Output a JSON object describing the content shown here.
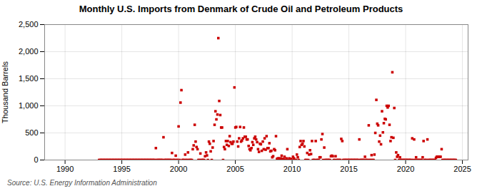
{
  "chart_data": {
    "type": "scatter",
    "title": "Monthly U.S. Imports from Denmark of Crude Oil and Petroleum Products",
    "ylabel": "Thousand Barrels",
    "annotations": [
      "Source: U.S. Energy Information Administration"
    ],
    "color": "#cc0000",
    "marker": "square",
    "grid": true,
    "xlim": [
      1988.2,
      2025.5
    ],
    "xticks": [
      1990,
      1995,
      2000,
      2005,
      2010,
      2015,
      2020,
      2025
    ],
    "ylim": [
      0,
      2500
    ],
    "yticks": [
      0,
      500,
      {
        "value": 1000,
        "label": "1,000"
      },
      {
        "value": 1500,
        "label": "1,500"
      },
      {
        "value": 2000,
        "label": "2,000"
      },
      {
        "value": 2500,
        "label": "2,500"
      }
    ],
    "x": [
      1993,
      1993.08,
      1993.17,
      1993.25,
      1993.33,
      1993.42,
      1993.5,
      1993.58,
      1993.67,
      1993.75,
      1993.83,
      1993.92,
      1994,
      1994.08,
      1994.17,
      1994.25,
      1994.33,
      1994.42,
      1994.5,
      1994.58,
      1994.67,
      1994.75,
      1994.83,
      1994.92,
      1995,
      1995.08,
      1995.17,
      1995.25,
      1995.33,
      1995.42,
      1995.5,
      1995.58,
      1995.67,
      1995.75,
      1995.83,
      1995.92,
      1996,
      1996.08,
      1996.17,
      1996.25,
      1996.33,
      1996.42,
      1996.5,
      1996.58,
      1996.67,
      1996.75,
      1996.83,
      1996.92,
      1997,
      1997.08,
      1997.17,
      1997.25,
      1997.33,
      1997.42,
      1997.5,
      1997.58,
      1997.67,
      1997.75,
      1997.83,
      1997.92,
      1998,
      1998.08,
      1998.17,
      1998.25,
      1998.33,
      1998.42,
      1998.5,
      1998.58,
      1998.67,
      1998.75,
      1998.83,
      1998.92,
      1999,
      1999.08,
      1999.17,
      1999.25,
      1999.33,
      1999.42,
      1999.5,
      1999.58,
      1999.67,
      1999.75,
      1999.83,
      1999.92,
      2000,
      2000.08,
      2000.17,
      2000.25,
      2000.33,
      2000.42,
      2000.5,
      2000.58,
      2000.67,
      2000.75,
      2000.83,
      2000.92,
      2001,
      2001.08,
      2001.17,
      2001.25,
      2001.33,
      2001.42,
      2001.5,
      2001.58,
      2001.67,
      2001.75,
      2001.83,
      2001.92,
      2002,
      2002.08,
      2002.17,
      2002.25,
      2002.33,
      2002.42,
      2002.5,
      2002.58,
      2002.67,
      2002.75,
      2002.83,
      2002.92,
      2003,
      2003.08,
      2003.17,
      2003.25,
      2003.33,
      2003.42,
      2003.5,
      2003.58,
      2003.67,
      2003.75,
      2003.83,
      2003.92,
      2004,
      2004.08,
      2004.17,
      2004.25,
      2004.33,
      2004.42,
      2004.5,
      2004.58,
      2004.67,
      2004.75,
      2004.83,
      2004.92,
      2005,
      2005.08,
      2005.17,
      2005.25,
      2005.33,
      2005.42,
      2005.5,
      2005.58,
      2005.67,
      2005.75,
      2005.83,
      2005.92,
      2006,
      2006.08,
      2006.17,
      2006.25,
      2006.33,
      2006.42,
      2006.5,
      2006.58,
      2006.67,
      2006.75,
      2006.83,
      2006.92,
      2007,
      2007.08,
      2007.17,
      2007.25,
      2007.33,
      2007.42,
      2007.5,
      2007.58,
      2007.67,
      2007.75,
      2007.83,
      2007.92,
      2008,
      2008.08,
      2008.17,
      2008.25,
      2008.33,
      2008.42,
      2008.5,
      2008.58,
      2008.67,
      2008.75,
      2008.83,
      2008.92,
      2009,
      2009.08,
      2009.17,
      2009.25,
      2009.33,
      2009.42,
      2009.5,
      2009.58,
      2009.67,
      2009.75,
      2009.83,
      2009.92,
      2010,
      2010.08,
      2010.17,
      2010.25,
      2010.33,
      2010.42,
      2010.5,
      2010.58,
      2010.67,
      2010.75,
      2010.83,
      2010.92,
      2011,
      2011.08,
      2011.17,
      2011.25,
      2011.33,
      2011.42,
      2011.5,
      2011.58,
      2011.67,
      2011.75,
      2011.83,
      2011.92,
      2012,
      2012.08,
      2012.17,
      2012.25,
      2012.33,
      2012.42,
      2012.5,
      2012.58,
      2012.67,
      2012.75,
      2012.83,
      2012.92,
      2013,
      2013.08,
      2013.17,
      2013.25,
      2013.33,
      2013.42,
      2013.5,
      2013.58,
      2013.67,
      2013.75,
      2013.83,
      2013.92,
      2014,
      2014.08,
      2014.17,
      2014.25,
      2014.33,
      2014.42,
      2014.5,
      2014.58,
      2014.67,
      2014.75,
      2014.83,
      2014.92,
      2015,
      2015.08,
      2015.17,
      2015.25,
      2015.33,
      2015.42,
      2015.5,
      2015.58,
      2015.67,
      2015.75,
      2015.83,
      2015.92,
      2016,
      2016.08,
      2016.17,
      2016.25,
      2016.33,
      2016.42,
      2016.5,
      2016.58,
      2016.67,
      2016.75,
      2016.83,
      2016.92,
      2017,
      2017.08,
      2017.17,
      2017.25,
      2017.33,
      2017.42,
      2017.5,
      2017.58,
      2017.67,
      2017.75,
      2017.83,
      2017.92,
      2018,
      2018.08,
      2018.17,
      2018.25,
      2018.33,
      2018.42,
      2018.5,
      2018.58,
      2018.67,
      2018.75,
      2018.83,
      2018.92,
      2019,
      2019.08,
      2019.17,
      2019.25,
      2019.33,
      2019.42,
      2019.5,
      2019.58,
      2019.67,
      2019.75,
      2019.83,
      2019.92,
      2020,
      2020.08,
      2020.17,
      2020.25,
      2020.33,
      2020.42,
      2020.5,
      2020.58,
      2020.67,
      2020.75,
      2020.83,
      2020.92,
      2021,
      2021.08,
      2021.17,
      2021.25,
      2021.33,
      2021.42,
      2021.5,
      2021.58,
      2021.67,
      2021.75,
      2021.83,
      2021.92,
      2022,
      2022.08,
      2022.17,
      2022.25,
      2022.33,
      2022.42,
      2022.5,
      2022.58,
      2022.67,
      2022.75,
      2022.83,
      2022.92,
      2023,
      2023.08,
      2023.17,
      2023.25,
      2023.33,
      2023.42,
      2023.5,
      2023.58,
      2023.67,
      2023.75,
      2023.83,
      2023.92,
      2024,
      2024.08,
      2024.17,
      2024.25,
      2024.33,
      2024.42
    ],
    "values": [
      0,
      0,
      0,
      0,
      0,
      0,
      0,
      0,
      0,
      0,
      0,
      0,
      0,
      0,
      0,
      0,
      0,
      0,
      0,
      0,
      0,
      0,
      0,
      0,
      0,
      0,
      0,
      0,
      0,
      0,
      0,
      0,
      0,
      0,
      0,
      0,
      0,
      0,
      0,
      0,
      0,
      0,
      0,
      0,
      0,
      0,
      0,
      0,
      0,
      0,
      0,
      0,
      0,
      0,
      0,
      0,
      0,
      0,
      0,
      0,
      220,
      0,
      0,
      0,
      0,
      0,
      0,
      0,
      420,
      0,
      0,
      0,
      0,
      0,
      0,
      0,
      0,
      130,
      0,
      0,
      0,
      80,
      0,
      0,
      620,
      0,
      1060,
      1290,
      0,
      0,
      0,
      100,
      0,
      0,
      140,
      0,
      0,
      0,
      0,
      200,
      270,
      650,
      340,
      240,
      200,
      0,
      0,
      120,
      0,
      0,
      0,
      0,
      70,
      140,
      85,
      0,
      340,
      300,
      160,
      0,
      230,
      350,
      650,
      900,
      750,
      840,
      2250,
      1090,
      830,
      600,
      600,
      0,
      240,
      200,
      350,
      280,
      350,
      260,
      440,
      330,
      300,
      300,
      340,
      1340,
      600,
      610,
      340,
      250,
      400,
      610,
      340,
      360,
      400,
      600,
      430,
      430,
      380,
      380,
      260,
      200,
      180,
      220,
      330,
      280,
      400,
      430,
      380,
      330,
      200,
      150,
      300,
      290,
      170,
      340,
      200,
      400,
      190,
      440,
      220,
      220,
      310,
      160,
      170,
      50,
      70,
      200,
      180,
      440,
      20,
      30,
      30,
      0,
      30,
      80,
      20,
      10,
      60,
      0,
      30,
      200,
      0,
      30,
      0,
      20,
      0,
      60,
      30,
      0,
      0,
      100,
      50,
      0,
      240,
      350,
      280,
      300,
      350,
      250,
      0,
      0,
      130,
      0,
      100,
      180,
      110,
      350,
      0,
      0,
      0,
      350,
      0,
      0,
      0,
      50,
      50,
      380,
      480,
      0,
      230,
      0,
      0,
      0,
      0,
      0,
      0,
      70,
      80,
      70,
      0,
      0,
      70,
      0,
      0,
      0,
      0,
      0,
      390,
      350,
      0,
      0,
      0,
      0,
      0,
      0,
      0,
      0,
      0,
      0,
      0,
      0,
      0,
      0,
      0,
      0,
      0,
      380,
      0,
      0,
      0,
      0,
      0,
      60,
      0,
      0,
      0,
      640,
      0,
      0,
      90,
      0,
      0,
      100,
      500,
      1110,
      670,
      640,
      340,
      450,
      290,
      900,
      510,
      680,
      760,
      750,
      1000,
      970,
      1000,
      650,
      350,
      420,
      1620,
      410,
      960,
      0,
      140,
      60,
      90,
      0,
      50,
      0,
      0,
      0,
      0,
      0,
      0,
      0,
      0,
      0,
      0,
      0,
      0,
      400,
      0,
      380,
      0,
      50,
      0,
      0,
      0,
      0,
      0,
      0,
      50,
      350,
      0,
      0,
      0,
      380,
      0,
      0,
      0,
      0,
      0,
      0,
      0,
      0,
      40,
      60,
      60,
      60,
      60,
      60,
      200,
      0,
      0,
      0,
      0,
      0,
      0,
      0,
      0,
      0,
      0,
      0,
      0,
      0,
      0,
      0
    ]
  }
}
